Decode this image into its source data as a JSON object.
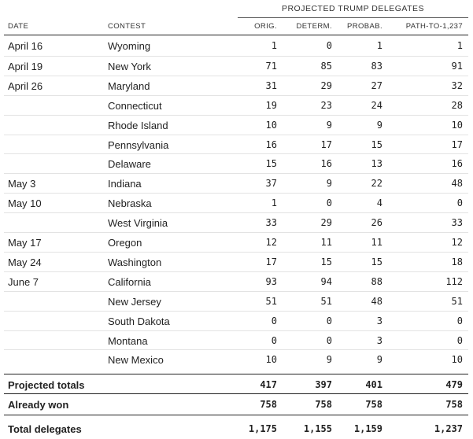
{
  "group_header": "PROJECTED TRUMP DELEGATES",
  "columns": {
    "date": "DATE",
    "contest": "CONTEST",
    "orig": "ORIG.",
    "determ": "DETERM.",
    "probab": "PROBAB.",
    "path": "PATH-TO-1,237"
  },
  "rows": [
    {
      "date": "April 16",
      "contest": "Wyoming",
      "orig": "1",
      "determ": "0",
      "probab": "1",
      "path": "1"
    },
    {
      "date": "April 19",
      "contest": "New York",
      "orig": "71",
      "determ": "85",
      "probab": "83",
      "path": "91"
    },
    {
      "date": "April 26",
      "contest": "Maryland",
      "orig": "31",
      "determ": "29",
      "probab": "27",
      "path": "32"
    },
    {
      "date": "",
      "contest": "Connecticut",
      "orig": "19",
      "determ": "23",
      "probab": "24",
      "path": "28"
    },
    {
      "date": "",
      "contest": "Rhode Island",
      "orig": "10",
      "determ": "9",
      "probab": "9",
      "path": "10"
    },
    {
      "date": "",
      "contest": "Pennsylvania",
      "orig": "16",
      "determ": "17",
      "probab": "15",
      "path": "17"
    },
    {
      "date": "",
      "contest": "Delaware",
      "orig": "15",
      "determ": "16",
      "probab": "13",
      "path": "16"
    },
    {
      "date": "May 3",
      "contest": "Indiana",
      "orig": "37",
      "determ": "9",
      "probab": "22",
      "path": "48"
    },
    {
      "date": "May 10",
      "contest": "Nebraska",
      "orig": "1",
      "determ": "0",
      "probab": "4",
      "path": "0"
    },
    {
      "date": "",
      "contest": "West Virginia",
      "orig": "33",
      "determ": "29",
      "probab": "26",
      "path": "33"
    },
    {
      "date": "May 17",
      "contest": "Oregon",
      "orig": "12",
      "determ": "11",
      "probab": "11",
      "path": "12"
    },
    {
      "date": "May 24",
      "contest": "Washington",
      "orig": "17",
      "determ": "15",
      "probab": "15",
      "path": "18"
    },
    {
      "date": "June 7",
      "contest": "California",
      "orig": "93",
      "determ": "94",
      "probab": "88",
      "path": "112"
    },
    {
      "date": "",
      "contest": "New Jersey",
      "orig": "51",
      "determ": "51",
      "probab": "48",
      "path": "51"
    },
    {
      "date": "",
      "contest": "South Dakota",
      "orig": "0",
      "determ": "0",
      "probab": "3",
      "path": "0"
    },
    {
      "date": "",
      "contest": "Montana",
      "orig": "0",
      "determ": "0",
      "probab": "3",
      "path": "0"
    },
    {
      "date": "",
      "contest": "New Mexico",
      "orig": "10",
      "determ": "9",
      "probab": "9",
      "path": "10"
    }
  ],
  "totals": [
    {
      "label": "Projected totals",
      "orig": "417",
      "determ": "397",
      "probab": "401",
      "path": "479"
    },
    {
      "label": "Already won",
      "orig": "758",
      "determ": "758",
      "probab": "758",
      "path": "758"
    },
    {
      "label": "Total delegates",
      "orig": "1,175",
      "determ": "1,155",
      "probab": "1,159",
      "path": "1,237"
    }
  ]
}
